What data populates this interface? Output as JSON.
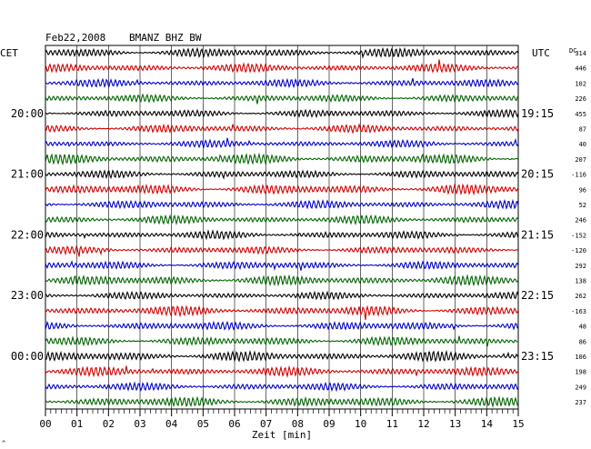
{
  "header": {
    "date": "Feb22,2008",
    "station": "BMANZ BHZ BW"
  },
  "labels": {
    "left_zone": "CET",
    "right_zone": "UTC",
    "dc": "DC",
    "x_axis": "Zeit [min]"
  },
  "corner_mark": "^",
  "colors": {
    "black": "#000000",
    "red": "#d00000",
    "blue": "#0000c8",
    "green": "#006400",
    "grid": "#000000"
  },
  "chart_data": {
    "type": "line",
    "title": "Feb22,2008   BMANZ BHZ BW",
    "xlabel": "Zeit [min]",
    "xlim": [
      0,
      15
    ],
    "x_ticks": [
      "00",
      "01",
      "02",
      "03",
      "04",
      "05",
      "06",
      "07",
      "08",
      "09",
      "10",
      "11",
      "12",
      "13",
      "14",
      "15"
    ],
    "trace_colors": [
      "black",
      "red",
      "blue",
      "green"
    ],
    "traces": 24,
    "left_time_labels": [
      "20:00",
      "21:00",
      "22:00",
      "23:00",
      "00:00"
    ],
    "right_time_labels": [
      "19:15",
      "20:15",
      "21:15",
      "22:15",
      "23:15"
    ],
    "time_label_every": 4,
    "time_label_start_trace": 4,
    "dc_values": [
      "314",
      "446",
      "102",
      "226",
      "455",
      "87",
      "40",
      "207",
      "-116",
      "96",
      "52",
      "246",
      "-152",
      "-120",
      "292",
      "138",
      "262",
      "-163",
      "48",
      "86",
      "106",
      "198",
      "249",
      "237"
    ]
  }
}
